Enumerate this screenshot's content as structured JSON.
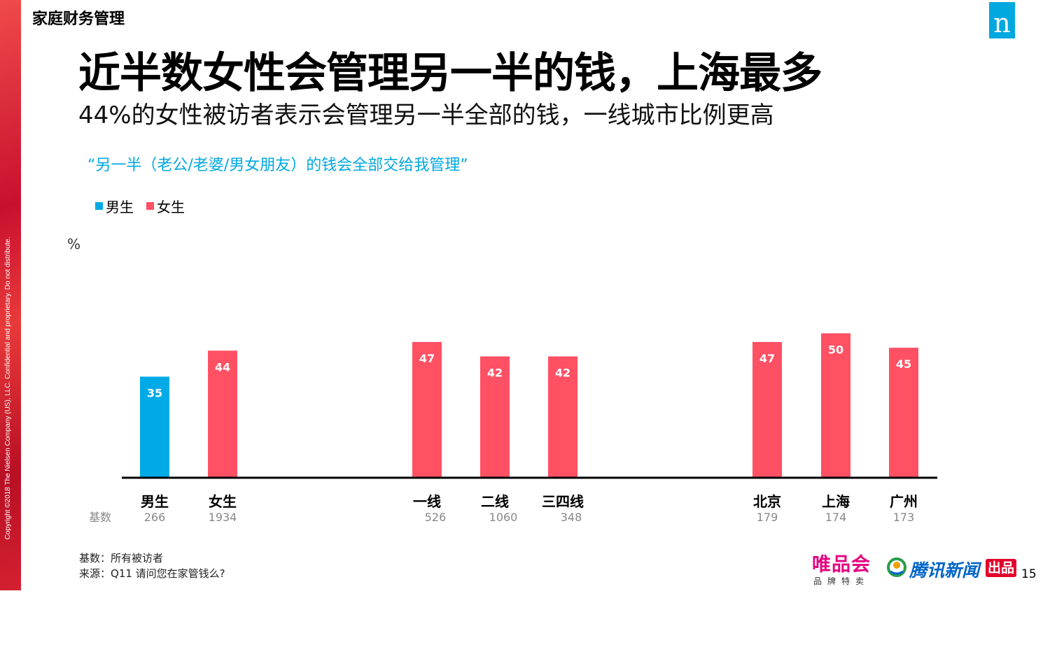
{
  "sidebar": {
    "copyright": "Copyright ©2018 The Nielsen Company (US), LLC. Confidential and proprietary. Do not distribute."
  },
  "header": {
    "section": "家庭财务管理",
    "logo_letter": "n"
  },
  "title": "近半数女性会管理另一半的钱，上海最多",
  "subtitle": "44%的女性被访者表示会管理另一半全部的钱，一线城市比例更高",
  "question_quote": "“另一半（老公/老婆/男女朋友）的钱会全部交给我管理”",
  "legend": [
    {
      "name": "男生",
      "color": "#00aae7"
    },
    {
      "name": "女生",
      "color": "#ff5064"
    }
  ],
  "unit_label": "%",
  "base_label": "基数",
  "chart_data": {
    "type": "bar",
    "ylim": [
      0,
      60
    ],
    "grid": false,
    "categories": [
      "男生",
      "女生",
      "一线",
      "二线",
      "三四线",
      "北京",
      "上海",
      "广州"
    ],
    "values": [
      35,
      44,
      47,
      42,
      42,
      47,
      50,
      45
    ],
    "series_of_bar": [
      "男生",
      "女生",
      "女生",
      "女生",
      "女生",
      "女生",
      "女生",
      "女生"
    ],
    "base": [
      "266",
      "1934",
      "526",
      "1060",
      "348",
      "179",
      "174",
      "173"
    ]
  },
  "footnotes": {
    "base": "基数：所有被访者",
    "source": "来源：Q11 请问您在家管钱么?"
  },
  "brands": {
    "vip_name": "唯品会",
    "vip_sub": "品牌特卖",
    "tencent": "腾讯新闻",
    "chupin": "出品"
  },
  "page_number": "15",
  "colors": {
    "male": "#00aae7",
    "female": "#ff5064",
    "accent": "#00a8e0"
  }
}
